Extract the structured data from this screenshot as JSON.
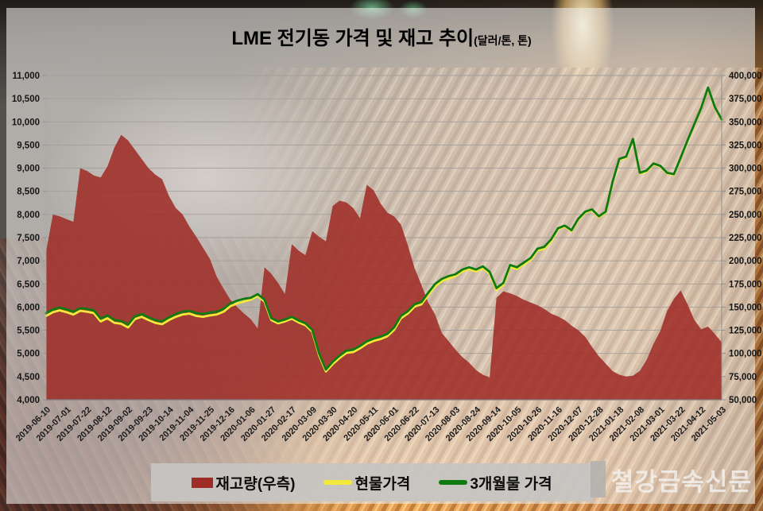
{
  "watermark": "철강금속신문",
  "chart_data": {
    "type": "area+line combo",
    "title": "LME 전기동 가격 및 재고 추이",
    "subtitle": "(달러/톤, 톤)",
    "grid": "horizontal",
    "legend_position": "bottom",
    "left_axis": {
      "min": 4000,
      "max": 11000,
      "step": 500,
      "ticks": [
        "11,000",
        "10,500",
        "10,000",
        "9,500",
        "9,000",
        "8,500",
        "8,000",
        "7,500",
        "7,000",
        "6,500",
        "6,000",
        "5,500",
        "5,000",
        "4,500",
        "4,000"
      ]
    },
    "right_axis": {
      "min": 50000,
      "max": 400000,
      "step": 25000,
      "ticks": [
        "400,000",
        "375,000",
        "350,000",
        "325,000",
        "300,000",
        "275,000",
        "250,000",
        "225,000",
        "200,000",
        "175,000",
        "150,000",
        "125,000",
        "100,000",
        "75,000",
        "50,000"
      ]
    },
    "x_tick_labels": [
      "2019-06-10",
      "2019-07-01",
      "2019-07-22",
      "2019-08-12",
      "2019-09-02",
      "2019-09-23",
      "2019-10-14",
      "2019-11-04",
      "2019-11-25",
      "2019-12-16",
      "2020-01-06",
      "2020-01-27",
      "2020-02-17",
      "2020-03-09",
      "2020-03-30",
      "2020-04-20",
      "2020-05-11",
      "2020-06-01",
      "2020-06-22",
      "2020-07-13",
      "2020-08-03",
      "2020-08-24",
      "2020-09-14",
      "2020-10-05",
      "2020-10-26",
      "2020-11-16",
      "2020-12-07",
      "2020-12-28",
      "2021-01-18",
      "2021-02-08",
      "2021-03-01",
      "2021-03-22",
      "2021-04-12",
      "2021-05-03"
    ],
    "x": [
      "2019-06-10",
      "2019-06-17",
      "2019-06-24",
      "2019-07-01",
      "2019-07-08",
      "2019-07-15",
      "2019-07-22",
      "2019-07-29",
      "2019-08-05",
      "2019-08-12",
      "2019-08-19",
      "2019-08-26",
      "2019-09-02",
      "2019-09-09",
      "2019-09-16",
      "2019-09-23",
      "2019-09-30",
      "2019-10-07",
      "2019-10-14",
      "2019-10-21",
      "2019-10-28",
      "2019-11-04",
      "2019-11-11",
      "2019-11-18",
      "2019-11-25",
      "2019-12-02",
      "2019-12-09",
      "2019-12-16",
      "2019-12-23",
      "2019-12-30",
      "2020-01-06",
      "2020-01-13",
      "2020-01-20",
      "2020-01-27",
      "2020-02-03",
      "2020-02-10",
      "2020-02-17",
      "2020-02-24",
      "2020-03-02",
      "2020-03-09",
      "2020-03-16",
      "2020-03-23",
      "2020-03-30",
      "2020-04-06",
      "2020-04-13",
      "2020-04-20",
      "2020-04-27",
      "2020-05-04",
      "2020-05-11",
      "2020-05-18",
      "2020-05-25",
      "2020-06-01",
      "2020-06-08",
      "2020-06-15",
      "2020-06-22",
      "2020-06-29",
      "2020-07-06",
      "2020-07-13",
      "2020-07-20",
      "2020-07-27",
      "2020-08-03",
      "2020-08-10",
      "2020-08-17",
      "2020-08-24",
      "2020-08-31",
      "2020-09-07",
      "2020-09-14",
      "2020-09-21",
      "2020-09-28",
      "2020-10-05",
      "2020-10-12",
      "2020-10-19",
      "2020-10-26",
      "2020-11-02",
      "2020-11-09",
      "2020-11-16",
      "2020-11-23",
      "2020-11-30",
      "2020-12-07",
      "2020-12-14",
      "2020-12-21",
      "2020-12-28",
      "2021-01-04",
      "2021-01-11",
      "2021-01-18",
      "2021-01-25",
      "2021-02-01",
      "2021-02-08",
      "2021-02-15",
      "2021-02-22",
      "2021-03-01",
      "2021-03-08",
      "2021-03-15",
      "2021-03-22",
      "2021-03-29",
      "2021-04-05",
      "2021-04-12",
      "2021-04-19",
      "2021-04-26",
      "2021-05-03"
    ],
    "series": [
      {
        "name": "재고량(우측)",
        "type": "area",
        "axis": "right",
        "color": "#9E2C26",
        "values": [
          210000,
          250000,
          248000,
          245000,
          242000,
          300000,
          297000,
          292000,
          290000,
          302000,
          322000,
          336000,
          330000,
          320000,
          310000,
          300000,
          293000,
          288000,
          270000,
          257000,
          250000,
          237000,
          226000,
          214000,
          202000,
          183000,
          170000,
          158000,
          150000,
          143000,
          137000,
          127000,
          193000,
          186000,
          176000,
          164000,
          218000,
          211000,
          206000,
          232000,
          226000,
          221000,
          259000,
          265000,
          263000,
          257000,
          246000,
          282000,
          276000,
          262000,
          252000,
          248000,
          239000,
          217000,
          192000,
          174000,
          155000,
          142000,
          122000,
          113000,
          104000,
          96000,
          90000,
          82000,
          77000,
          74000,
          160000,
          167000,
          165000,
          162000,
          158000,
          155000,
          152000,
          148000,
          143000,
          140000,
          136000,
          130000,
          125000,
          118000,
          107000,
          97000,
          89000,
          81000,
          77000,
          75000,
          76000,
          81000,
          93000,
          110000,
          124000,
          146000,
          159000,
          168000,
          153000,
          136000,
          126000,
          129000,
          121000,
          112000
        ]
      },
      {
        "name": "현물가격",
        "type": "line",
        "axis": "left",
        "color": "#F2E93A",
        "values": [
          5810,
          5890,
          5930,
          5890,
          5840,
          5920,
          5900,
          5870,
          5690,
          5760,
          5660,
          5640,
          5560,
          5740,
          5790,
          5720,
          5660,
          5630,
          5720,
          5790,
          5840,
          5860,
          5810,
          5790,
          5820,
          5840,
          5900,
          6020,
          6080,
          6120,
          6160,
          6240,
          6120,
          5720,
          5650,
          5690,
          5750,
          5670,
          5610,
          5470,
          4960,
          4610,
          4770,
          4900,
          5010,
          5030,
          5110,
          5210,
          5270,
          5310,
          5370,
          5510,
          5760,
          5860,
          6010,
          6060,
          6260,
          6450,
          6560,
          6620,
          6670,
          6770,
          6820,
          6770,
          6840,
          6720,
          6370,
          6480,
          6870,
          6820,
          6920,
          7020,
          7220,
          7260,
          7420,
          7680,
          7740,
          7640,
          7890,
          8040,
          8090,
          7940,
          8040,
          8680,
          9180,
          9230,
          9610,
          8880,
          8930,
          9080,
          9035,
          8885,
          8855,
          9215,
          9585,
          9935,
          10285,
          10725,
          10305,
          10035
        ]
      },
      {
        "name": "3개월물 가격",
        "type": "line",
        "axis": "left",
        "color": "#0E7A11",
        "values": [
          5870,
          5950,
          5990,
          5950,
          5900,
          5980,
          5960,
          5930,
          5750,
          5820,
          5720,
          5700,
          5620,
          5800,
          5850,
          5780,
          5720,
          5690,
          5780,
          5850,
          5900,
          5920,
          5870,
          5850,
          5880,
          5900,
          5960,
          6080,
          6140,
          6180,
          6200,
          6280,
          6160,
          5760,
          5690,
          5730,
          5790,
          5710,
          5650,
          5510,
          5000,
          4650,
          4820,
          4950,
          5060,
          5080,
          5160,
          5260,
          5320,
          5360,
          5420,
          5560,
          5810,
          5910,
          6060,
          6110,
          6310,
          6500,
          6610,
          6670,
          6710,
          6810,
          6860,
          6810,
          6880,
          6760,
          6410,
          6520,
          6910,
          6860,
          6960,
          7060,
          7260,
          7300,
          7460,
          7700,
          7760,
          7660,
          7910,
          8060,
          8110,
          7960,
          8060,
          8700,
          9200,
          9250,
          9630,
          8900,
          8950,
          9100,
          9050,
          8900,
          8870,
          9230,
          9600,
          9950,
          10300,
          10740,
          10320,
          10050
        ]
      }
    ]
  }
}
